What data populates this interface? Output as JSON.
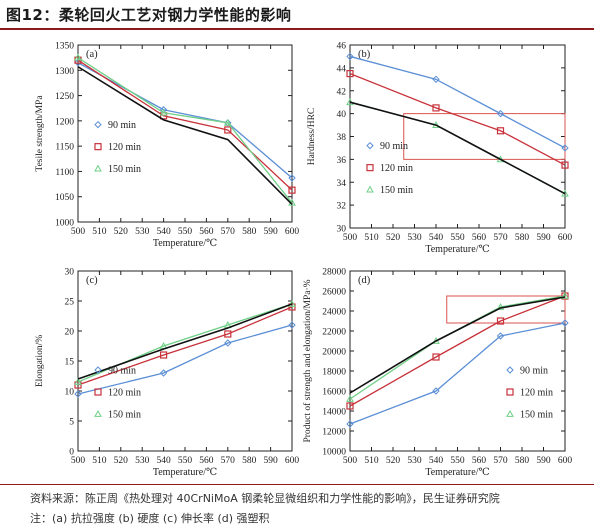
{
  "figure": {
    "title": "图12：柔轮回火工艺对钢力学性能的影响",
    "source": "资料来源：陈正周《热处理对 40CrNiMoA 钢柔轮显微组织和力学性能的影响》，民生证券研究院",
    "note": "注：(a) 抗拉强度 (b) 硬度 (c) 伸长率 (d) 强塑积"
  },
  "colors": {
    "90 min": "#5b8fd6",
    "120 min": "#c8323a",
    "150 min": "#6fcf86",
    "black_line": "#111111",
    "highlight_box": "#d9534f",
    "title_rule": "#8c1a1a"
  },
  "chart_data": [
    {
      "type": "line",
      "panel": "(a)",
      "xlabel": "Temperature/℃",
      "ylabel": "Tesile strength/MPa",
      "xlim": [
        500,
        600
      ],
      "ylim": [
        1000,
        1350
      ],
      "xticks": [
        500,
        510,
        520,
        530,
        540,
        550,
        560,
        570,
        580,
        590,
        600
      ],
      "yticks": [
        1000,
        1050,
        1100,
        1150,
        1200,
        1250,
        1300,
        1350
      ],
      "legend": "left",
      "series": [
        {
          "name": "90 min",
          "marker": "diamond",
          "x": [
            500,
            540,
            570,
            600
          ],
          "y": [
            1315,
            1222,
            1196,
            1087
          ]
        },
        {
          "name": "120 min",
          "marker": "square",
          "x": [
            500,
            540,
            570,
            600
          ],
          "y": [
            1320,
            1210,
            1182,
            1063
          ]
        },
        {
          "name": "150 min",
          "marker": "triangle",
          "x": [
            500,
            540,
            570,
            600
          ],
          "y": [
            1325,
            1216,
            1196,
            1038
          ]
        },
        {
          "name": "",
          "marker": "none",
          "x": [
            500,
            540,
            570,
            600
          ],
          "y": [
            1307,
            1202,
            1163,
            1035
          ]
        }
      ]
    },
    {
      "type": "line",
      "panel": "(b)",
      "xlabel": "Temperature/℃",
      "ylabel": "Hardness/HRC",
      "xlim": [
        500,
        600
      ],
      "ylim": [
        30,
        46
      ],
      "xticks": [
        500,
        510,
        520,
        530,
        540,
        550,
        560,
        570,
        580,
        590,
        600
      ],
      "yticks": [
        30,
        32,
        34,
        36,
        38,
        40,
        42,
        44,
        46
      ],
      "legend": "lower-left",
      "highlight": {
        "x": [
          525,
          600
        ],
        "y": [
          36,
          40
        ]
      },
      "series": [
        {
          "name": "90 min",
          "marker": "diamond",
          "x": [
            500,
            540,
            570,
            600
          ],
          "y": [
            45,
            43,
            40,
            37
          ]
        },
        {
          "name": "120 min",
          "marker": "square",
          "x": [
            500,
            540,
            570,
            600
          ],
          "y": [
            43.5,
            40.5,
            38.5,
            35.5
          ]
        },
        {
          "name": "150 min",
          "marker": "triangle",
          "x": [
            500,
            540,
            570,
            600
          ],
          "y": [
            41,
            39,
            36,
            33
          ]
        },
        {
          "name": "",
          "marker": "none",
          "x": [
            500,
            540,
            570,
            600
          ],
          "y": [
            41,
            39,
            36,
            33
          ]
        }
      ]
    },
    {
      "type": "line",
      "panel": "(c)",
      "xlabel": "Temperature/℃",
      "ylabel": "Elongation/%",
      "xlim": [
        500,
        600
      ],
      "ylim": [
        0,
        30
      ],
      "xticks": [
        500,
        510,
        520,
        530,
        540,
        550,
        560,
        570,
        580,
        590,
        600
      ],
      "yticks": [
        0,
        5,
        10,
        15,
        20,
        25,
        30
      ],
      "legend": "lower-left",
      "series": [
        {
          "name": "90 min",
          "marker": "diamond",
          "x": [
            500,
            540,
            570,
            600
          ],
          "y": [
            9.5,
            13,
            18,
            21
          ]
        },
        {
          "name": "120 min",
          "marker": "square",
          "x": [
            500,
            540,
            570,
            600
          ],
          "y": [
            11,
            16,
            19.5,
            24
          ]
        },
        {
          "name": "150 min",
          "marker": "triangle",
          "x": [
            500,
            540,
            570,
            600
          ],
          "y": [
            11.5,
            17.5,
            21,
            24.5
          ]
        },
        {
          "name": "",
          "marker": "none",
          "x": [
            500,
            540,
            570,
            600
          ],
          "y": [
            12,
            17,
            20.5,
            24.5
          ]
        }
      ]
    },
    {
      "type": "line",
      "panel": "(d)",
      "xlabel": "Temperature/℃",
      "ylabel": "Product of strength and elongation/MPa·%",
      "xlim": [
        500,
        600
      ],
      "ylim": [
        10000,
        28000
      ],
      "xticks": [
        500,
        510,
        520,
        530,
        540,
        550,
        560,
        570,
        580,
        590,
        600
      ],
      "yticks": [
        10000,
        12000,
        14000,
        16000,
        18000,
        20000,
        22000,
        24000,
        26000,
        28000
      ],
      "legend": "lower-right",
      "highlight": {
        "x": [
          545,
          600
        ],
        "y": [
          22800,
          25500
        ]
      },
      "series": [
        {
          "name": "90 min",
          "marker": "diamond",
          "x": [
            500,
            540,
            570,
            600
          ],
          "y": [
            12700,
            16000,
            21500,
            22800
          ]
        },
        {
          "name": "120 min",
          "marker": "square",
          "x": [
            500,
            540,
            570,
            600
          ],
          "y": [
            14500,
            19400,
            23000,
            25500
          ]
        },
        {
          "name": "150 min",
          "marker": "triangle",
          "x": [
            500,
            540,
            570,
            600
          ],
          "y": [
            15200,
            21000,
            24400,
            25500
          ]
        },
        {
          "name": "",
          "marker": "none",
          "x": [
            500,
            540,
            570,
            600
          ],
          "y": [
            15800,
            21000,
            24300,
            25400
          ]
        }
      ]
    }
  ]
}
